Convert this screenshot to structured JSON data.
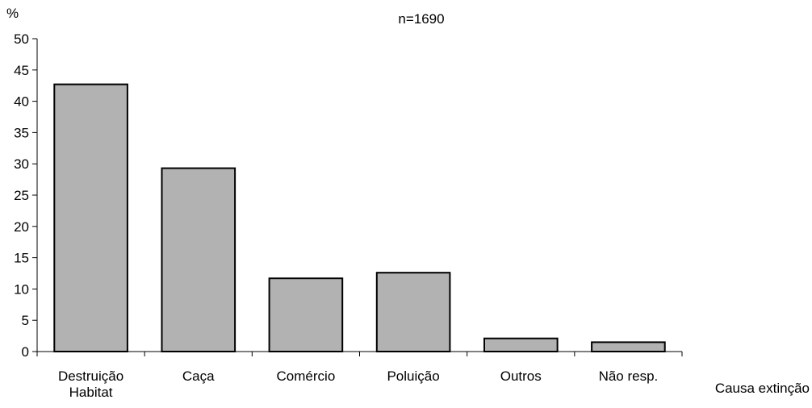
{
  "chart_data": {
    "type": "bar",
    "title": "n=1690",
    "ylabel": "%",
    "xlabel": "Causa extinção",
    "categories": [
      [
        "Destruição",
        "Habitat"
      ],
      [
        "Caça"
      ],
      [
        "Comércio"
      ],
      [
        "Poluição"
      ],
      [
        "Outros"
      ],
      [
        "Não resp."
      ]
    ],
    "values": [
      42.7,
      29.3,
      11.7,
      12.6,
      2.1,
      1.5
    ],
    "ylim": [
      0,
      50
    ],
    "yticks": [
      0,
      5,
      10,
      15,
      20,
      25,
      30,
      35,
      40,
      45,
      50
    ],
    "grid": false,
    "legend": "none",
    "colors": {
      "bar_fill": "#b2b2b2",
      "bar_stroke": "#000000",
      "axis": "#000000"
    }
  }
}
